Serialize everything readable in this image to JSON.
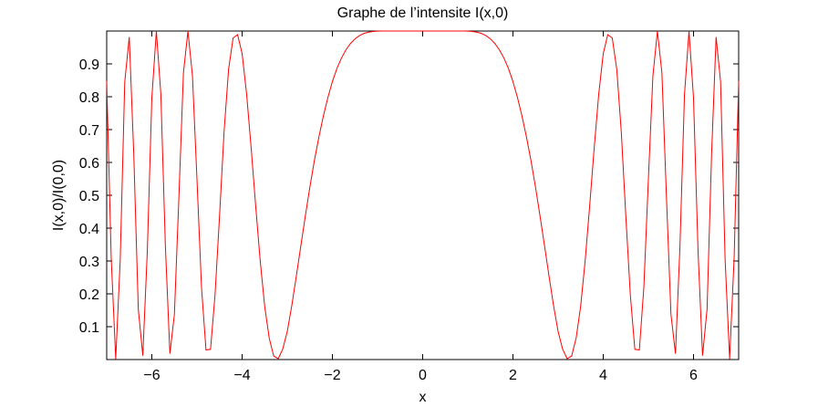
{
  "chart_data": {
    "type": "line",
    "title": "Graphe de l’intensite I(x,0)",
    "xlabel": "x",
    "ylabel": "I(x,0)/I(0,0)",
    "xlim": [
      -7,
      7
    ],
    "ylim": [
      0,
      1
    ],
    "x_ticks": [
      -6,
      -4,
      -2,
      0,
      2,
      4,
      6
    ],
    "x_tick_labels": [
      "−6",
      "−4",
      "−2",
      "0",
      "2",
      "4",
      "6"
    ],
    "y_ticks": [
      0.1,
      0.2,
      0.3,
      0.4,
      0.5,
      0.6,
      0.7,
      0.8,
      0.9
    ],
    "y_tick_labels": [
      "0.1",
      "0.2",
      "0.3",
      "0.4",
      "0.5",
      "0.6",
      "0.7",
      "0.8",
      "0.9"
    ],
    "grid": false,
    "legend": "none",
    "line_color": "#ff0000",
    "series": [
      {
        "x": [
          -7,
          -6.9,
          -6.8,
          -6.7,
          -6.6,
          -6.5,
          -6.4,
          -6.3,
          -6.2,
          -6.1,
          -6.0,
          -5.9,
          -5.8,
          -5.7,
          -5.6,
          -5.5,
          -5.4,
          -5.3,
          -5.2,
          -5.1,
          -5.0,
          -4.9,
          -4.8,
          -4.7,
          -4.6,
          -4.5,
          -4.4,
          -4.3,
          -4.2,
          -4.1,
          -4.0,
          -3.9,
          -3.8,
          -3.7,
          -3.6,
          -3.5,
          -3.4,
          -3.3,
          -3.2,
          -3.1,
          -3.0,
          -2.9,
          -2.8,
          -2.7,
          -2.6,
          -2.5,
          -2.4,
          -2.3,
          -2.2,
          -2.1,
          -2.0,
          -1.9,
          -1.8,
          -1.7,
          -1.6,
          -1.5,
          -1.4,
          -1.3,
          -1.2,
          -1.1,
          -1.0,
          -0.9,
          -0.8,
          -0.7,
          -0.6,
          -0.5,
          -0.4,
          -0.3,
          -0.2,
          -0.1,
          0.0,
          0.1,
          0.2,
          0.3,
          0.4,
          0.5,
          0.6,
          0.7,
          0.8,
          0.9,
          1.0,
          1.1,
          1.2,
          1.3,
          1.4,
          1.5,
          1.6,
          1.7,
          1.8,
          1.9,
          2.0,
          2.1,
          2.2,
          2.3,
          2.4,
          2.5,
          2.6,
          2.7,
          2.8,
          2.9,
          3.0,
          3.1,
          3.2,
          3.3,
          3.4,
          3.5,
          3.6,
          3.7,
          3.8,
          3.9,
          4.0,
          4.1,
          4.2,
          4.3,
          4.4,
          4.5,
          4.6,
          4.7,
          4.8,
          4.9,
          5.0,
          5.1,
          5.2,
          5.3,
          5.4,
          5.5,
          5.6,
          5.7,
          5.8,
          5.9,
          6.0,
          6.1,
          6.2,
          6.3,
          6.4,
          6.5,
          6.6,
          6.7,
          6.8,
          6.9,
          7.0
        ],
        "y": [
          0.848,
          0.3095,
          0.0016,
          0.3041,
          0.8451,
          0.9817,
          0.6241,
          0.1533,
          0.0119,
          0.3305,
          0.7961,
          0.9999,
          0.8072,
          0.3459,
          0.0177,
          0.1378,
          0.4963,
          0.8723,
          0.9999,
          0.8632,
          0.5486,
          0.2205,
          0.0291,
          0.0311,
          0.1969,
          0.4373,
          0.6926,
          0.8832,
          0.9788,
          0.9888,
          0.9312,
          0.8075,
          0.6448,
          0.4685,
          0.3015,
          0.1624,
          0.0654,
          0.0107,
          0.0028,
          0.0316,
          0.0853,
          0.1636,
          0.2529,
          0.3455,
          0.4366,
          0.5242,
          0.6049,
          0.6768,
          0.7413,
          0.7977,
          0.8461,
          0.8858,
          0.9176,
          0.9427,
          0.9619,
          0.9762,
          0.9862,
          0.9927,
          0.9966,
          0.9987,
          0.9996,
          0.9999,
          1.0,
          1.0,
          1.0,
          1.0,
          1.0,
          1.0,
          1.0,
          1.0,
          1.0,
          1.0,
          1.0,
          1.0,
          1.0,
          1.0,
          1.0,
          1.0,
          1.0,
          0.9999,
          0.9996,
          0.9987,
          0.9966,
          0.9927,
          0.9862,
          0.9762,
          0.9619,
          0.9427,
          0.9176,
          0.8858,
          0.8461,
          0.7977,
          0.7413,
          0.6768,
          0.6049,
          0.5242,
          0.4366,
          0.3455,
          0.2529,
          0.1636,
          0.0853,
          0.0316,
          0.0028,
          0.0107,
          0.0654,
          0.1624,
          0.3015,
          0.4685,
          0.6448,
          0.8075,
          0.9312,
          0.9888,
          0.9788,
          0.8832,
          0.6926,
          0.4373,
          0.1969,
          0.0311,
          0.0291,
          0.2205,
          0.5486,
          0.8632,
          0.9999,
          0.8723,
          0.4963,
          0.1378,
          0.0177,
          0.3459,
          0.8072,
          0.9999,
          0.7961,
          0.3305,
          0.0119,
          0.1533,
          0.6241,
          0.9817,
          0.8451,
          0.3041,
          0.0016,
          0.3095,
          0.848
        ]
      }
    ]
  }
}
